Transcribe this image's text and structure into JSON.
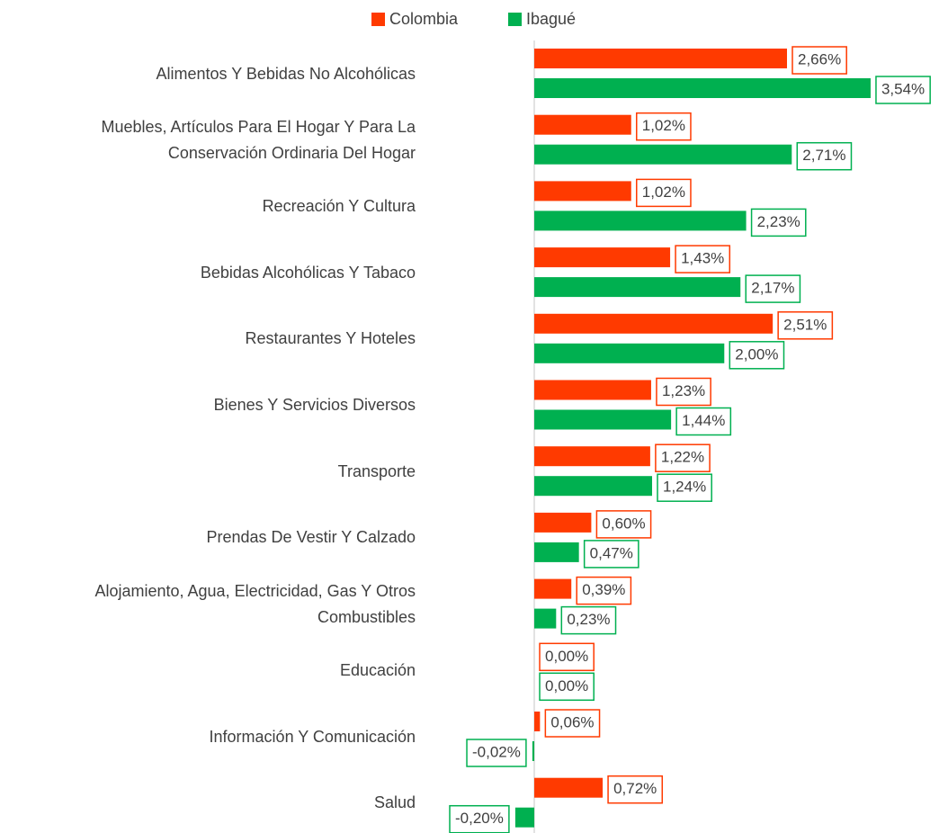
{
  "chart_data": {
    "type": "hbar",
    "categories": [
      "Alimentos Y Bebidas No Alcohólicas",
      "Muebles, Artículos Para El Hogar Y Para La Conservación Ordinaria Del Hogar",
      "Recreación Y Cultura",
      "Bebidas Alcohólicas Y Tabaco",
      "Restaurantes Y Hoteles",
      "Bienes Y Servicios Diversos",
      "Transporte",
      "Prendas De Vestir Y Calzado",
      "Alojamiento, Agua, Electricidad, Gas Y Otros Combustibles",
      "Educación",
      "Información Y Comunicación",
      "Salud"
    ],
    "series": [
      {
        "name": "Colombia",
        "color": "#ff3a00",
        "values": [
          2.66,
          1.02,
          1.02,
          1.43,
          2.51,
          1.23,
          1.22,
          0.6,
          0.39,
          0.0,
          0.06,
          0.72
        ],
        "value_labels": [
          "2,66%",
          "1,02%",
          "1,02%",
          "1,43%",
          "2,51%",
          "1,23%",
          "1,22%",
          "0,60%",
          "0,39%",
          "0,00%",
          "0,06%",
          "0,72%"
        ]
      },
      {
        "name": "Ibagué",
        "color": "#00b050",
        "values": [
          3.54,
          2.71,
          2.23,
          2.17,
          2.0,
          1.44,
          1.24,
          0.47,
          0.23,
          0.0,
          -0.02,
          -0.2
        ],
        "value_labels": [
          "3,54%",
          "2,71%",
          "2,23%",
          "2,17%",
          "2,00%",
          "1,44%",
          "1,24%",
          "0,47%",
          "0,23%",
          "0,00%",
          "-0,02%",
          "-0,20%"
        ]
      }
    ],
    "xlim": [
      -0.5,
      3.6
    ],
    "legend": "top"
  }
}
